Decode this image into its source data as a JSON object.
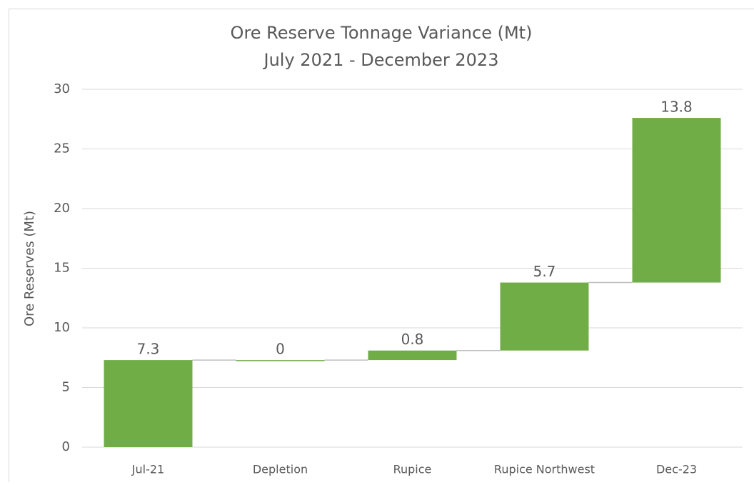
{
  "chart_data": {
    "type": "waterfall",
    "title": "Ore Reserve Tonnage Variance (Mt)",
    "subtitle": "July 2021 - December 2023",
    "y_label": "Ore Reserves (Mt)",
    "categories": [
      "Jul-21",
      "Depletion",
      "Rupice",
      "Rupice Northwest",
      "Dec-23"
    ],
    "values": [
      7.3,
      0,
      0.8,
      5.7,
      13.8
    ],
    "color": "#70ad47",
    "ylim": [
      0,
      30
    ],
    "yticks": [
      0,
      5,
      10,
      15,
      20,
      25,
      30
    ],
    "grid": true
  }
}
